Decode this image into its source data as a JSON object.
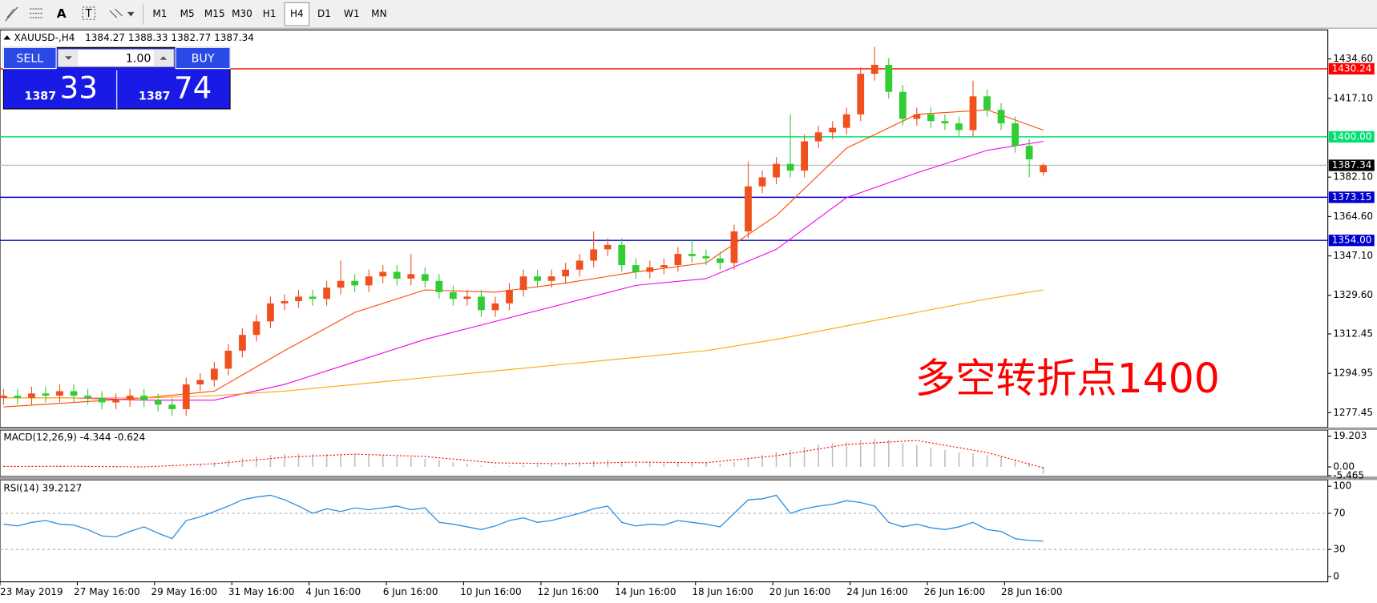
{
  "toolbar": {
    "tools": [
      "A",
      "T"
    ],
    "timeframes": [
      "M1",
      "M5",
      "M15",
      "M30",
      "H1",
      "H4",
      "D1",
      "W1",
      "MN"
    ],
    "active": "H4"
  },
  "trade_panel": {
    "sell_label": "SELL",
    "volume": "1.00",
    "buy_label": "BUY",
    "sell_big": "1387",
    "sell_pips": "33",
    "buy_big": "1387",
    "buy_pips": "74"
  },
  "chart_data": {
    "type": "candlestick",
    "symbol": "XAUUSD-,H4",
    "up_color": "#f0501e",
    "down_color": "#32cd32",
    "open": [
      1284,
      1285,
      1284,
      1286,
      1285,
      1287,
      1285,
      1284,
      1282,
      1283,
      1285,
      1283,
      1281,
      1279,
      1290,
      1292,
      1297,
      1305,
      1312,
      1318,
      1326,
      1327,
      1329,
      1328,
      1333,
      1336,
      1334,
      1338,
      1340,
      1337,
      1339,
      1336,
      1331,
      1328,
      1329,
      1323,
      1326,
      1332,
      1338,
      1336,
      1338,
      1341,
      1345,
      1350,
      1352,
      1343,
      1340,
      1342,
      1343,
      1348,
      1347,
      1346,
      1344,
      1358,
      1378,
      1382,
      1388,
      1385,
      1398,
      1402,
      1404,
      1410,
      1428,
      1432,
      1420,
      1408,
      1410,
      1407,
      1406,
      1403,
      1418,
      1412,
      1406,
      1396,
      1384.27
    ],
    "high": [
      1288,
      1288,
      1289,
      1289,
      1290,
      1290,
      1288,
      1287,
      1286,
      1288,
      1288,
      1286,
      1284,
      1293,
      1295,
      1300,
      1308,
      1315,
      1321,
      1329,
      1330,
      1332,
      1332,
      1336,
      1345,
      1339,
      1341,
      1343,
      1343,
      1348,
      1342,
      1339,
      1334,
      1332,
      1332,
      1329,
      1335,
      1341,
      1341,
      1341,
      1344,
      1348,
      1358,
      1355,
      1355,
      1346,
      1345,
      1346,
      1351,
      1354,
      1350,
      1349,
      1361,
      1389,
      1385,
      1391,
      1410,
      1401,
      1405,
      1407,
      1413,
      1431,
      1440,
      1435,
      1423,
      1413,
      1413,
      1410,
      1409,
      1425,
      1421,
      1415,
      1409,
      1399,
      1388.33
    ],
    "low": [
      1281,
      1281,
      1281,
      1282,
      1282,
      1282,
      1281,
      1279,
      1279,
      1280,
      1280,
      1278,
      1276,
      1276,
      1287,
      1289,
      1294,
      1302,
      1309,
      1315,
      1323,
      1324,
      1325,
      1325,
      1330,
      1331,
      1331,
      1335,
      1334,
      1334,
      1333,
      1328,
      1325,
      1325,
      1320,
      1320,
      1323,
      1329,
      1333,
      1333,
      1335,
      1338,
      1342,
      1347,
      1340,
      1337,
      1337,
      1339,
      1340,
      1344,
      1343,
      1341,
      1341,
      1355,
      1375,
      1379,
      1382,
      1382,
      1395,
      1399,
      1401,
      1407,
      1425,
      1417,
      1405,
      1405,
      1404,
      1403,
      1400,
      1400,
      1409,
      1403,
      1393,
      1382,
      1382.77
    ],
    "close": [
      1285,
      1284,
      1286,
      1285,
      1287,
      1285,
      1284,
      1282,
      1283,
      1285,
      1283,
      1281,
      1279,
      1290,
      1292,
      1297,
      1305,
      1312,
      1318,
      1326,
      1327,
      1329,
      1328,
      1333,
      1336,
      1334,
      1338,
      1340,
      1337,
      1339,
      1336,
      1331,
      1328,
      1329,
      1323,
      1326,
      1332,
      1338,
      1336,
      1338,
      1341,
      1345,
      1350,
      1352,
      1343,
      1340,
      1342,
      1343,
      1348,
      1347,
      1346,
      1344,
      1358,
      1378,
      1382,
      1388,
      1385,
      1398,
      1402,
      1404,
      1410,
      1428,
      1432,
      1420,
      1408,
      1410,
      1407,
      1406,
      1403,
      1418,
      1412,
      1406,
      1396,
      1390,
      1387.34
    ],
    "ylim": [
      1270.9,
      1447.5
    ],
    "yticks": [
      {
        "value": 1434.6,
        "label": "1434.60"
      },
      {
        "value": 1417.1,
        "label": "1417.10"
      },
      {
        "value": 1382.1,
        "label": "1382.10"
      },
      {
        "value": 1364.6,
        "label": "1364.60"
      },
      {
        "value": 1347.1,
        "label": "1347.10"
      },
      {
        "value": 1329.6,
        "label": "1329.60"
      },
      1312.45,
      1294.95,
      1277.45
    ],
    "levels": [
      {
        "value": 1430.24,
        "color": "#ff0000"
      },
      {
        "value": 1400,
        "label": "1400.00",
        "color": "#00e070"
      },
      {
        "value": 1373.15,
        "color": "#0000cc"
      },
      {
        "value": 1354,
        "label": "1354.00",
        "color": "#0000cc"
      }
    ],
    "bid_color": "#c0c0c0",
    "ma_x": [
      0,
      5,
      10,
      15,
      20,
      25,
      30,
      35,
      40,
      45,
      50,
      55,
      60,
      65,
      70,
      74
    ],
    "moving_averages": [
      {
        "color": "#ff4500",
        "values": [
          1280,
          1282,
          1284,
          1287,
          1305,
          1322,
          1332,
          1331,
          1335,
          1340,
          1344,
          1365,
          1395,
          1410,
          1412,
          1403
        ]
      },
      {
        "color": "#ee00ee",
        "values": [
          1284,
          1284,
          1283,
          1283,
          1290,
          1300,
          1310,
          1318,
          1326,
          1334,
          1337,
          1350,
          1373,
          1384,
          1394,
          1398
        ]
      },
      {
        "color": "#ffa500",
        "values": [
          1284,
          1284,
          1284,
          1285,
          1287,
          1290,
          1293,
          1296,
          1299,
          1302,
          1305,
          1310,
          1316,
          1322,
          1328,
          1332
        ]
      }
    ],
    "x_labels": [
      "23 May 2019",
      "27 May 16:00",
      "29 May 16:00",
      "31 May 16:00",
      "4 Jun 16:00",
      "6 Jun 16:00",
      "10 Jun 16:00",
      "12 Jun 16:00",
      "14 Jun 16:00",
      "18 Jun 16:00",
      "20 Jun 16:00",
      "24 Jun 16:00",
      "26 Jun 16:00",
      "28 Jun 16:00"
    ],
    "annotation": "多空转折点1400",
    "macd": {
      "label": "MACD(12,26,9)",
      "ylim": [
        -6.03,
        23.04
      ],
      "yticks": [
        19.203,
        {
          "value": 0,
          "label": "0.00"
        },
        -5.465
      ],
      "histogram": [
        0.5,
        0.4,
        0.6,
        0.5,
        0.7,
        0.4,
        0.2,
        0.0,
        -0.2,
        0.1,
        0.0,
        -0.3,
        -0.5,
        0.5,
        1.5,
        2.8,
        4.2,
        5.5,
        6.6,
        7.5,
        8.0,
        8.2,
        8.0,
        8.1,
        8.2,
        7.8,
        7.5,
        7.2,
        6.5,
        6.0,
        5.2,
        4.0,
        2.8,
        2.0,
        0.8,
        0.3,
        0.5,
        1.2,
        1.6,
        2.0,
        2.5,
        3.2,
        4.0,
        4.3,
        3.5,
        2.8,
        2.4,
        2.2,
        2.6,
        2.6,
        2.4,
        2.0,
        3.0,
        5.5,
        7.5,
        9.5,
        10.5,
        12.5,
        14.0,
        14.8,
        15.5,
        17.0,
        17.5,
        17.0,
        15.0,
        13.5,
        12.0,
        10.5,
        9.0,
        8.5,
        7.5,
        6.5,
        4.8,
        2.5,
        -4.344
      ],
      "signal": [
        0.3,
        0.4,
        0.0,
        2.0,
        6.0,
        8.0,
        6.5,
        2.5,
        2.0,
        3.0,
        2.6,
        7.0,
        14.0,
        16.5,
        9.0,
        -0.624
      ],
      "hist_color": "#c0c0c0",
      "signal_color": "#ff0000"
    },
    "rsi": {
      "label": "RSI(14)",
      "ylim": [
        -5.8,
        106.8
      ],
      "yticks": [
        100,
        70,
        30,
        0
      ],
      "levels": [
        70,
        30
      ],
      "color": "#2f8fe0",
      "values": [
        58,
        56,
        60,
        62,
        58,
        57,
        52,
        45,
        44,
        50,
        55,
        48,
        42,
        62,
        66,
        72,
        78,
        85,
        88,
        90,
        85,
        78,
        70,
        75,
        72,
        76,
        74,
        76,
        78,
        74,
        76,
        60,
        58,
        55,
        52,
        56,
        62,
        65,
        60,
        62,
        66,
        70,
        75,
        78,
        60,
        56,
        58,
        57,
        62,
        60,
        58,
        55,
        70,
        85,
        86,
        90,
        70,
        75,
        78,
        80,
        84,
        82,
        78,
        60,
        55,
        58,
        54,
        52,
        55,
        60,
        52,
        50,
        42,
        40,
        39.2127
      ]
    }
  }
}
